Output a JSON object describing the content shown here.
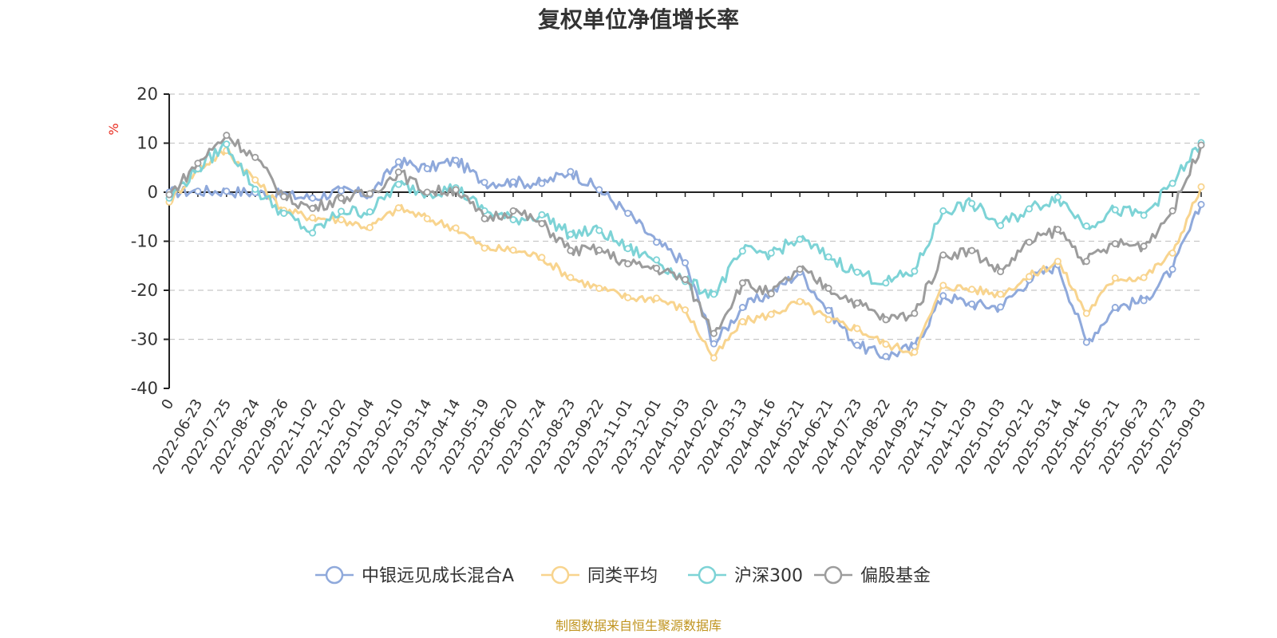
{
  "chart_data": {
    "type": "line",
    "title": "复权单位净值增长率",
    "ylabel": "%",
    "ylim": [
      -40,
      20
    ],
    "yticks": [
      -40,
      -30,
      -20,
      -10,
      0,
      10,
      20
    ],
    "grid": true,
    "legend_position": "bottom",
    "x": [
      "0",
      "2022-06-23",
      "2022-07-25",
      "2022-08-24",
      "2022-09-26",
      "2022-11-02",
      "2022-12-02",
      "2023-01-04",
      "2023-02-10",
      "2023-03-14",
      "2023-04-14",
      "2023-05-19",
      "2023-06-20",
      "2023-07-24",
      "2023-08-23",
      "2023-09-22",
      "2023-11-01",
      "2023-12-01",
      "2024-01-03",
      "2024-02-02",
      "2024-03-13",
      "2024-04-16",
      "2024-05-21",
      "2024-06-21",
      "2024-07-23",
      "2024-08-22",
      "2024-09-25",
      "2024-11-01",
      "2024-12-03",
      "2025-01-03",
      "2025-02-12",
      "2025-03-14",
      "2025-04-16",
      "2025-05-21",
      "2025-06-23",
      "2025-07-23",
      "2025-09-03"
    ],
    "series": [
      {
        "name": "中银远见成长混合A",
        "color": "#8fa9db",
        "values": [
          0,
          0.2,
          0.2,
          -0.1,
          -0.6,
          -1.2,
          0.3,
          -0.5,
          6.2,
          4.8,
          6.5,
          2.0,
          2.1,
          1.8,
          4.2,
          0.5,
          -4.3,
          -10.2,
          -14.4,
          -30.9,
          -23.5,
          -20.5,
          -16.3,
          -24.1,
          -31.2,
          -33.5,
          -31.4,
          -21.1,
          -22.8,
          -23.4,
          -17.9,
          -14.8,
          -30.6,
          -23.5,
          -22.1,
          -15.7,
          -2.5
        ]
      },
      {
        "name": "同类平均",
        "color": "#f8d48e",
        "values": [
          -2.0,
          4.7,
          8.5,
          2.5,
          -3.7,
          -5.2,
          -5.6,
          -7.2,
          -3.2,
          -5.4,
          -7.3,
          -11.4,
          -11.8,
          -13.3,
          -17.4,
          -19.6,
          -21.5,
          -21.6,
          -24.0,
          -33.8,
          -26.4,
          -24.9,
          -22.3,
          -26.0,
          -27.8,
          -31.0,
          -32.6,
          -19.0,
          -19.8,
          -20.8,
          -17.2,
          -14.1,
          -24.7,
          -17.5,
          -17.4,
          -12.4,
          1.1
        ]
      },
      {
        "name": "沪深300",
        "color": "#7dd3d6",
        "values": [
          -1.2,
          4.8,
          9.8,
          0.6,
          -4.3,
          -8.3,
          -3.9,
          -4.0,
          1.6,
          -0.1,
          0.9,
          -3.8,
          -5.6,
          -4.6,
          -8.6,
          -7.8,
          -11.5,
          -13.8,
          -18.2,
          -20.8,
          -12.0,
          -12.4,
          -9.6,
          -13.2,
          -16.3,
          -18.5,
          -16.1,
          -3.8,
          -2.3,
          -6.8,
          -3.4,
          -1.0,
          -6.9,
          -3.6,
          -4.7,
          1.8,
          10.1
        ]
      },
      {
        "name": "偏股基金",
        "color": "#9c9c9c",
        "values": [
          -0.5,
          5.9,
          11.6,
          7.1,
          -0.9,
          -3.3,
          -1.2,
          -0.3,
          4.1,
          0.0,
          0.5,
          -5.4,
          -3.8,
          -6.4,
          -11.9,
          -11.8,
          -14.6,
          -15.5,
          -17.8,
          -28.8,
          -18.5,
          -20.7,
          -15.7,
          -19.6,
          -22.6,
          -26.0,
          -24.7,
          -12.8,
          -11.9,
          -16.2,
          -10.2,
          -7.6,
          -14.1,
          -10.5,
          -11.0,
          -3.8,
          9.6
        ]
      }
    ]
  },
  "footer": {
    "source": "制图数据来自恒生聚源数据库"
  }
}
